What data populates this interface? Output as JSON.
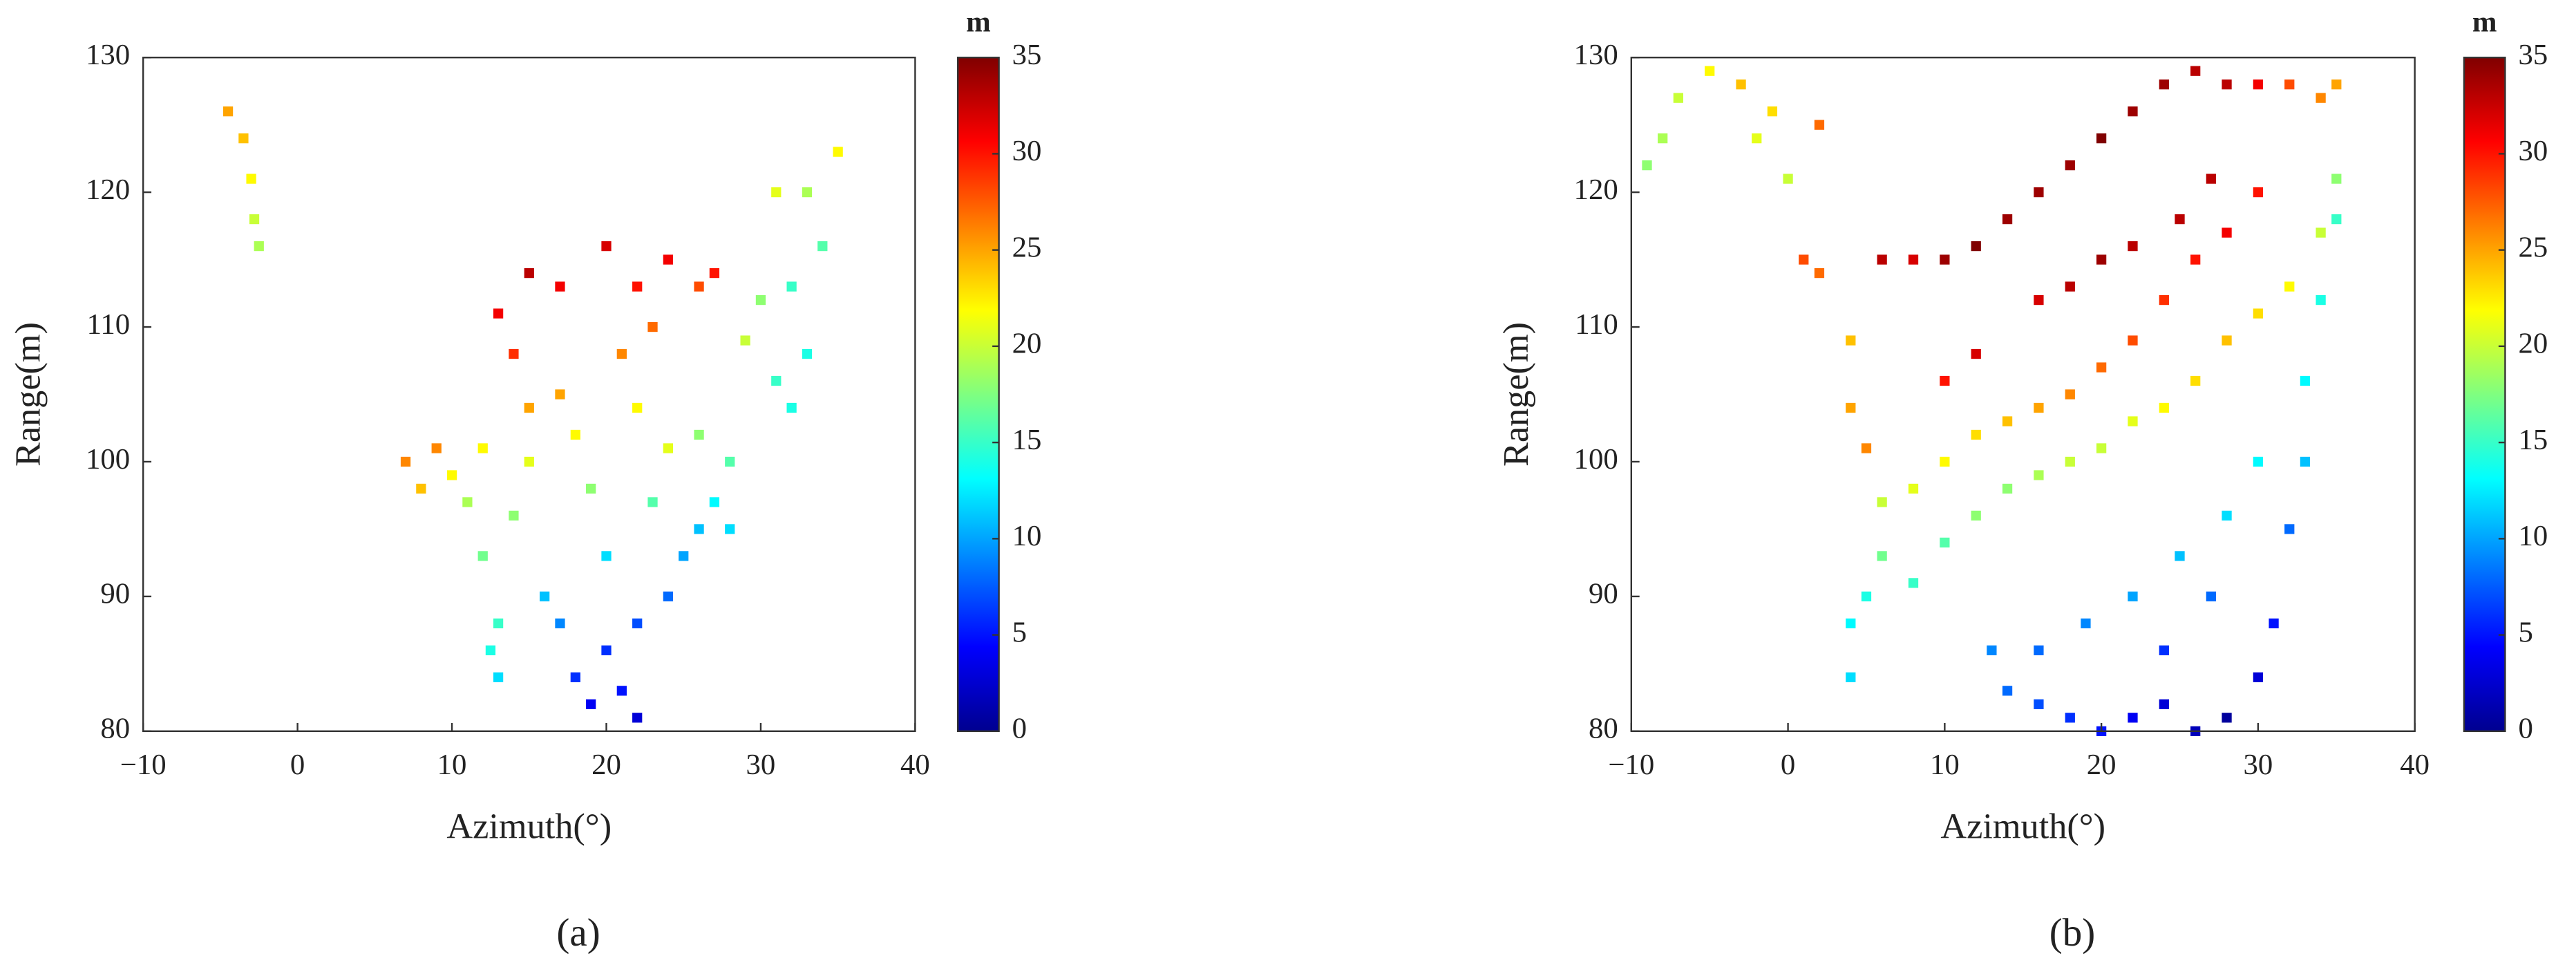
{
  "chart_data": [
    {
      "type": "scatter",
      "panel_label": "(a)",
      "xlabel": "Azimuth(°)",
      "ylabel": "Range(m)",
      "colormap": "jet",
      "colorbar_label": "m",
      "clim": [
        0,
        35
      ],
      "cticks": [
        0,
        5,
        10,
        15,
        20,
        25,
        30,
        35
      ],
      "xlim": [
        -10,
        40
      ],
      "xticks": [
        {
          "value": -10,
          "label": "−10"
        },
        0,
        10,
        20,
        30,
        40
      ],
      "ylim": [
        80,
        130
      ],
      "yticks": [
        80,
        90,
        100,
        110,
        120,
        130
      ],
      "x": [
        -4.5,
        -3.5,
        -3,
        -2.8,
        -2.5,
        7,
        8,
        9,
        10,
        11,
        12,
        12,
        13,
        13,
        12.5,
        14,
        15,
        15,
        14,
        13,
        15,
        17,
        17,
        18,
        16,
        17,
        18,
        19,
        20,
        21,
        22,
        22,
        24,
        25,
        26,
        27,
        28,
        28,
        26,
        24,
        22,
        21,
        23,
        24,
        22,
        20,
        26,
        27,
        29,
        30,
        31,
        32,
        33,
        32,
        34,
        33,
        35,
        31,
        19,
        23,
        20
      ],
      "y": [
        126,
        124,
        121,
        118,
        116,
        100,
        98,
        101,
        99,
        97,
        101,
        93,
        88,
        84,
        86,
        96,
        100,
        104,
        108,
        111,
        114,
        113,
        105,
        102,
        90,
        88,
        84,
        82,
        86,
        83,
        81,
        88,
        90,
        93,
        95,
        97,
        95,
        100,
        102,
        101,
        104,
        108,
        110,
        115,
        113,
        116,
        113,
        114,
        109,
        112,
        106,
        104,
        108,
        113,
        116,
        120,
        123,
        120,
        98,
        97,
        93
      ],
      "z": [
        25,
        24,
        22,
        20,
        19,
        26,
        24,
        26,
        22,
        19,
        22,
        17,
        15,
        12,
        14,
        18,
        21,
        25,
        29,
        31,
        33,
        31,
        25,
        22,
        11,
        9,
        6,
        4,
        6,
        5,
        3,
        7,
        8,
        10,
        11,
        13,
        12,
        16,
        18,
        21,
        22,
        26,
        27,
        31,
        30,
        32,
        28,
        30,
        20,
        18,
        15,
        14,
        14,
        15,
        16,
        19,
        22,
        21,
        18,
        16,
        12
      ]
    },
    {
      "type": "scatter",
      "panel_label": "(b)",
      "xlabel": "Azimuth(°)",
      "ylabel": "Range(m)",
      "colormap": "jet",
      "colorbar_label": "m",
      "clim": [
        0,
        35
      ],
      "cticks": [
        0,
        5,
        10,
        15,
        20,
        25,
        30,
        35
      ],
      "xlim": [
        -10,
        40
      ],
      "xticks": [
        {
          "value": -10,
          "label": "−10"
        },
        0,
        10,
        20,
        30,
        40
      ],
      "ylim": [
        80,
        130
      ],
      "yticks": [
        80,
        90,
        100,
        110,
        120,
        130
      ],
      "x": [
        -9,
        -8,
        -7,
        -5,
        -3,
        -1,
        -2,
        0,
        2,
        1,
        2,
        6,
        8,
        10,
        12,
        14,
        16,
        18,
        20,
        22,
        24,
        26,
        28,
        30,
        32,
        34,
        35,
        4,
        4,
        5,
        6,
        8,
        10,
        12,
        14,
        16,
        18,
        20,
        22,
        24,
        26,
        28,
        30,
        27,
        25,
        22,
        20,
        18,
        16,
        12,
        10,
        6,
        8,
        10,
        12,
        14,
        16,
        18,
        20,
        22,
        24,
        26,
        28,
        30,
        32,
        34,
        35,
        35,
        34,
        33,
        33,
        32,
        31,
        30,
        28,
        26,
        24,
        22,
        20,
        18,
        16,
        14,
        13,
        16,
        19,
        22,
        25,
        28,
        30,
        27,
        24,
        4,
        4,
        5
      ],
      "y": [
        122,
        124,
        127,
        129,
        128,
        126,
        124,
        121,
        125,
        115,
        114,
        115,
        115,
        115,
        116,
        118,
        120,
        122,
        124,
        126,
        128,
        129,
        128,
        128,
        128,
        127,
        128,
        109,
        104,
        101,
        97,
        98,
        100,
        102,
        103,
        104,
        105,
        107,
        109,
        112,
        115,
        117,
        120,
        121,
        118,
        116,
        115,
        113,
        112,
        108,
        106,
        93,
        91,
        94,
        96,
        98,
        99,
        100,
        101,
        103,
        104,
        106,
        109,
        111,
        113,
        117,
        121,
        118,
        112,
        106,
        100,
        95,
        88,
        84,
        81,
        80,
        82,
        81,
        80,
        81,
        82,
        83,
        86,
        86,
        88,
        90,
        93,
        96,
        100,
        90,
        86,
        84,
        88,
        90
      ],
      "z": [
        18,
        19,
        20,
        22,
        24,
        23,
        21,
        20,
        27,
        28,
        27,
        33,
        32,
        34,
        35,
        34,
        34,
        34,
        35,
        34,
        34,
        33,
        33,
        31,
        28,
        26,
        25,
        24,
        25,
        26,
        20,
        21,
        22,
        23,
        24,
        25,
        26,
        27,
        28,
        29,
        30,
        31,
        30,
        33,
        33,
        33,
        34,
        33,
        32,
        32,
        30,
        17,
        15,
        16,
        18,
        18,
        19,
        20,
        20,
        21,
        22,
        23,
        24,
        23,
        22,
        20,
        18,
        15,
        14,
        13,
        11,
        8,
        5,
        3,
        1,
        2,
        3,
        4,
        5,
        6,
        7,
        8,
        9,
        8,
        9,
        10,
        11,
        12,
        13,
        8,
        6,
        12,
        13,
        14
      ]
    }
  ]
}
